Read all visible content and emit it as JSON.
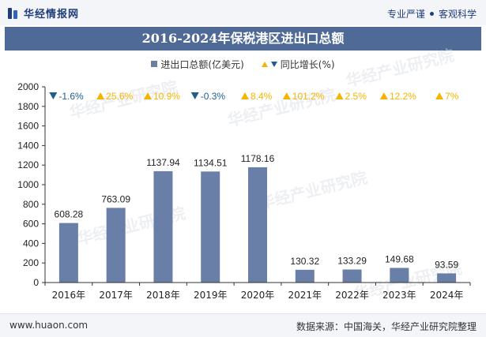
{
  "header": {
    "brand": "华经情报网",
    "tagline_left": "专业严谨",
    "tagline_right": "客观科学"
  },
  "colors": {
    "bar": "#6a7fa8",
    "up": "#f5b400",
    "down": "#1f5f8f",
    "title_bg": "#4f6a96"
  },
  "watermark": "华经产业研究院",
  "chart_data": {
    "type": "bar",
    "title": "2016-2024年保税港区进出口总额",
    "categories": [
      "2016年",
      "2017年",
      "2018年",
      "2019年",
      "2020年",
      "2021年",
      "2022年",
      "2023年",
      "2024年"
    ],
    "series": [
      {
        "name": "进出口总额(亿美元)",
        "values": [
          608.28,
          763.09,
          1137.94,
          1134.51,
          1178.16,
          130.32,
          133.29,
          149.68,
          93.59
        ],
        "value_labels": [
          "608.28",
          "763.09",
          "1137.94",
          "1134.51",
          "1178.16",
          "130.32",
          "133.29",
          "149.68",
          "93.59"
        ]
      },
      {
        "name": "同比增长(%)",
        "values": [
          -1.6,
          25.6,
          10.9,
          -0.3,
          8.4,
          101.2,
          2.5,
          12.2,
          7
        ],
        "labels": [
          "-1.6%",
          "25.6%",
          "10.9%",
          "-0.3%",
          "8.4%",
          "101.2%",
          "2.5%",
          "12.2%",
          "7%"
        ]
      }
    ],
    "yticks": [
      "0",
      "200",
      "400",
      "600",
      "800",
      "1000",
      "1200",
      "1400",
      "1600",
      "1800",
      "2000"
    ],
    "ylim": [
      0,
      2000
    ],
    "xlabel": "",
    "ylabel": "",
    "legend": "top-center"
  },
  "footer": {
    "url": "www.huaon.com",
    "source": "数据来源：中国海关，华经产业研究院整理"
  }
}
